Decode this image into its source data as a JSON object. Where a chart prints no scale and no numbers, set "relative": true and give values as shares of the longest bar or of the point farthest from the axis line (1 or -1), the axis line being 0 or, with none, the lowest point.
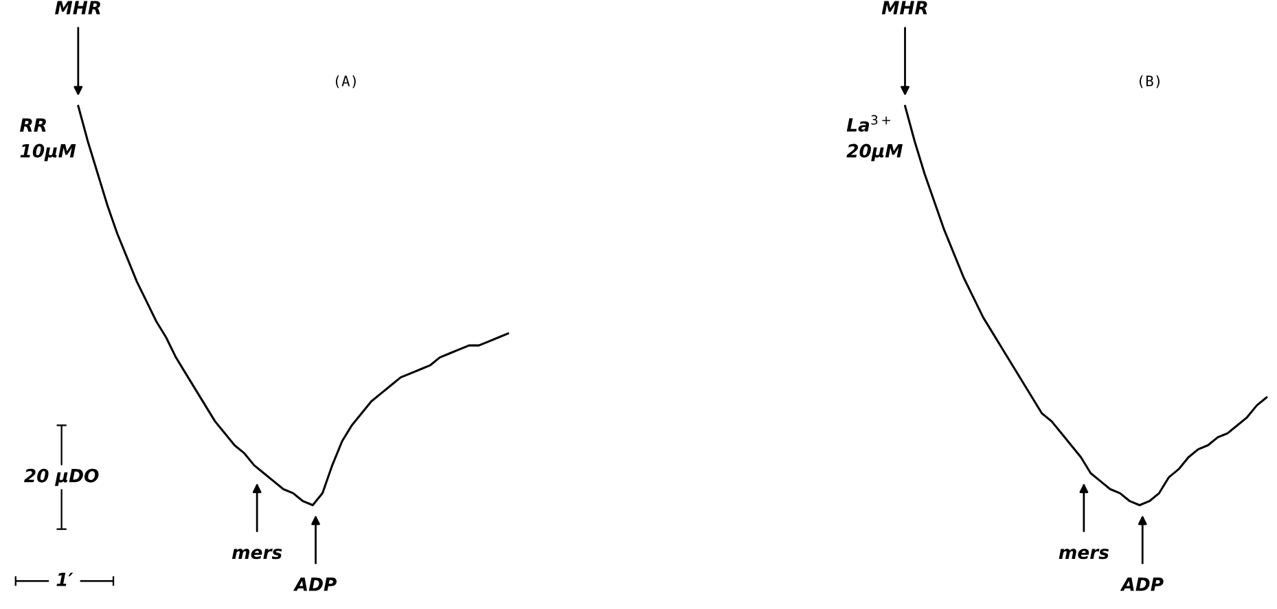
{
  "chart_data": [
    {
      "type": "line",
      "title": "(A)",
      "relative": true,
      "categories": [
        null,
        null,
        null,
        null,
        null,
        null,
        null,
        null,
        null,
        null,
        null,
        null,
        null,
        null,
        null,
        null,
        null,
        null,
        null,
        null,
        null,
        null,
        null,
        null,
        null,
        null,
        null,
        null,
        null,
        null,
        null,
        null,
        null,
        null,
        null,
        null,
        null,
        null,
        null,
        null,
        null,
        null,
        null,
        null,
        null
      ],
      "series": [
        {
          "color": "#000000",
          "values": [
            1.0,
            0.91,
            0.83,
            0.75,
            0.68,
            0.62,
            0.56,
            0.51,
            0.46,
            0.42,
            0.37,
            0.33,
            0.29,
            0.25,
            0.21,
            0.18,
            0.15,
            0.13,
            0.1,
            0.08,
            0.06,
            0.04,
            0.03,
            0.01,
            0.0,
            0.03,
            0.1,
            0.16,
            0.2,
            0.23,
            0.26,
            0.28,
            0.3,
            0.32,
            0.33,
            0.34,
            0.35,
            0.37,
            0.38,
            0.39,
            0.4,
            0.4,
            0.41,
            0.42,
            0.43
          ]
        }
      ],
      "annotations": [
        "MHR",
        "mers",
        "ADP",
        "RR\n10µM",
        "20 µDO",
        "1′"
      ]
    },
    {
      "type": "line",
      "title": "(B)",
      "relative": true,
      "categories": [
        null,
        null,
        null,
        null,
        null,
        null,
        null,
        null,
        null,
        null,
        null,
        null,
        null,
        null,
        null,
        null,
        null,
        null,
        null,
        null,
        null,
        null,
        null,
        null,
        null,
        null,
        null,
        null,
        null,
        null,
        null,
        null,
        null,
        null,
        null,
        null,
        null,
        null
      ],
      "series": [
        {
          "color": "#000000",
          "values": [
            1.0,
            0.91,
            0.83,
            0.76,
            0.69,
            0.63,
            0.57,
            0.52,
            0.47,
            0.43,
            0.39,
            0.35,
            0.31,
            0.27,
            0.23,
            0.21,
            0.18,
            0.15,
            0.12,
            0.08,
            0.06,
            0.04,
            0.03,
            0.01,
            0.0,
            0.01,
            0.03,
            0.07,
            0.09,
            0.12,
            0.14,
            0.15,
            0.17,
            0.18,
            0.2,
            0.22,
            0.25,
            0.27
          ]
        }
      ],
      "annotations": [
        "MHR",
        "mers",
        "ADP",
        "La$^{3+}$\n20µM"
      ]
    }
  ]
}
